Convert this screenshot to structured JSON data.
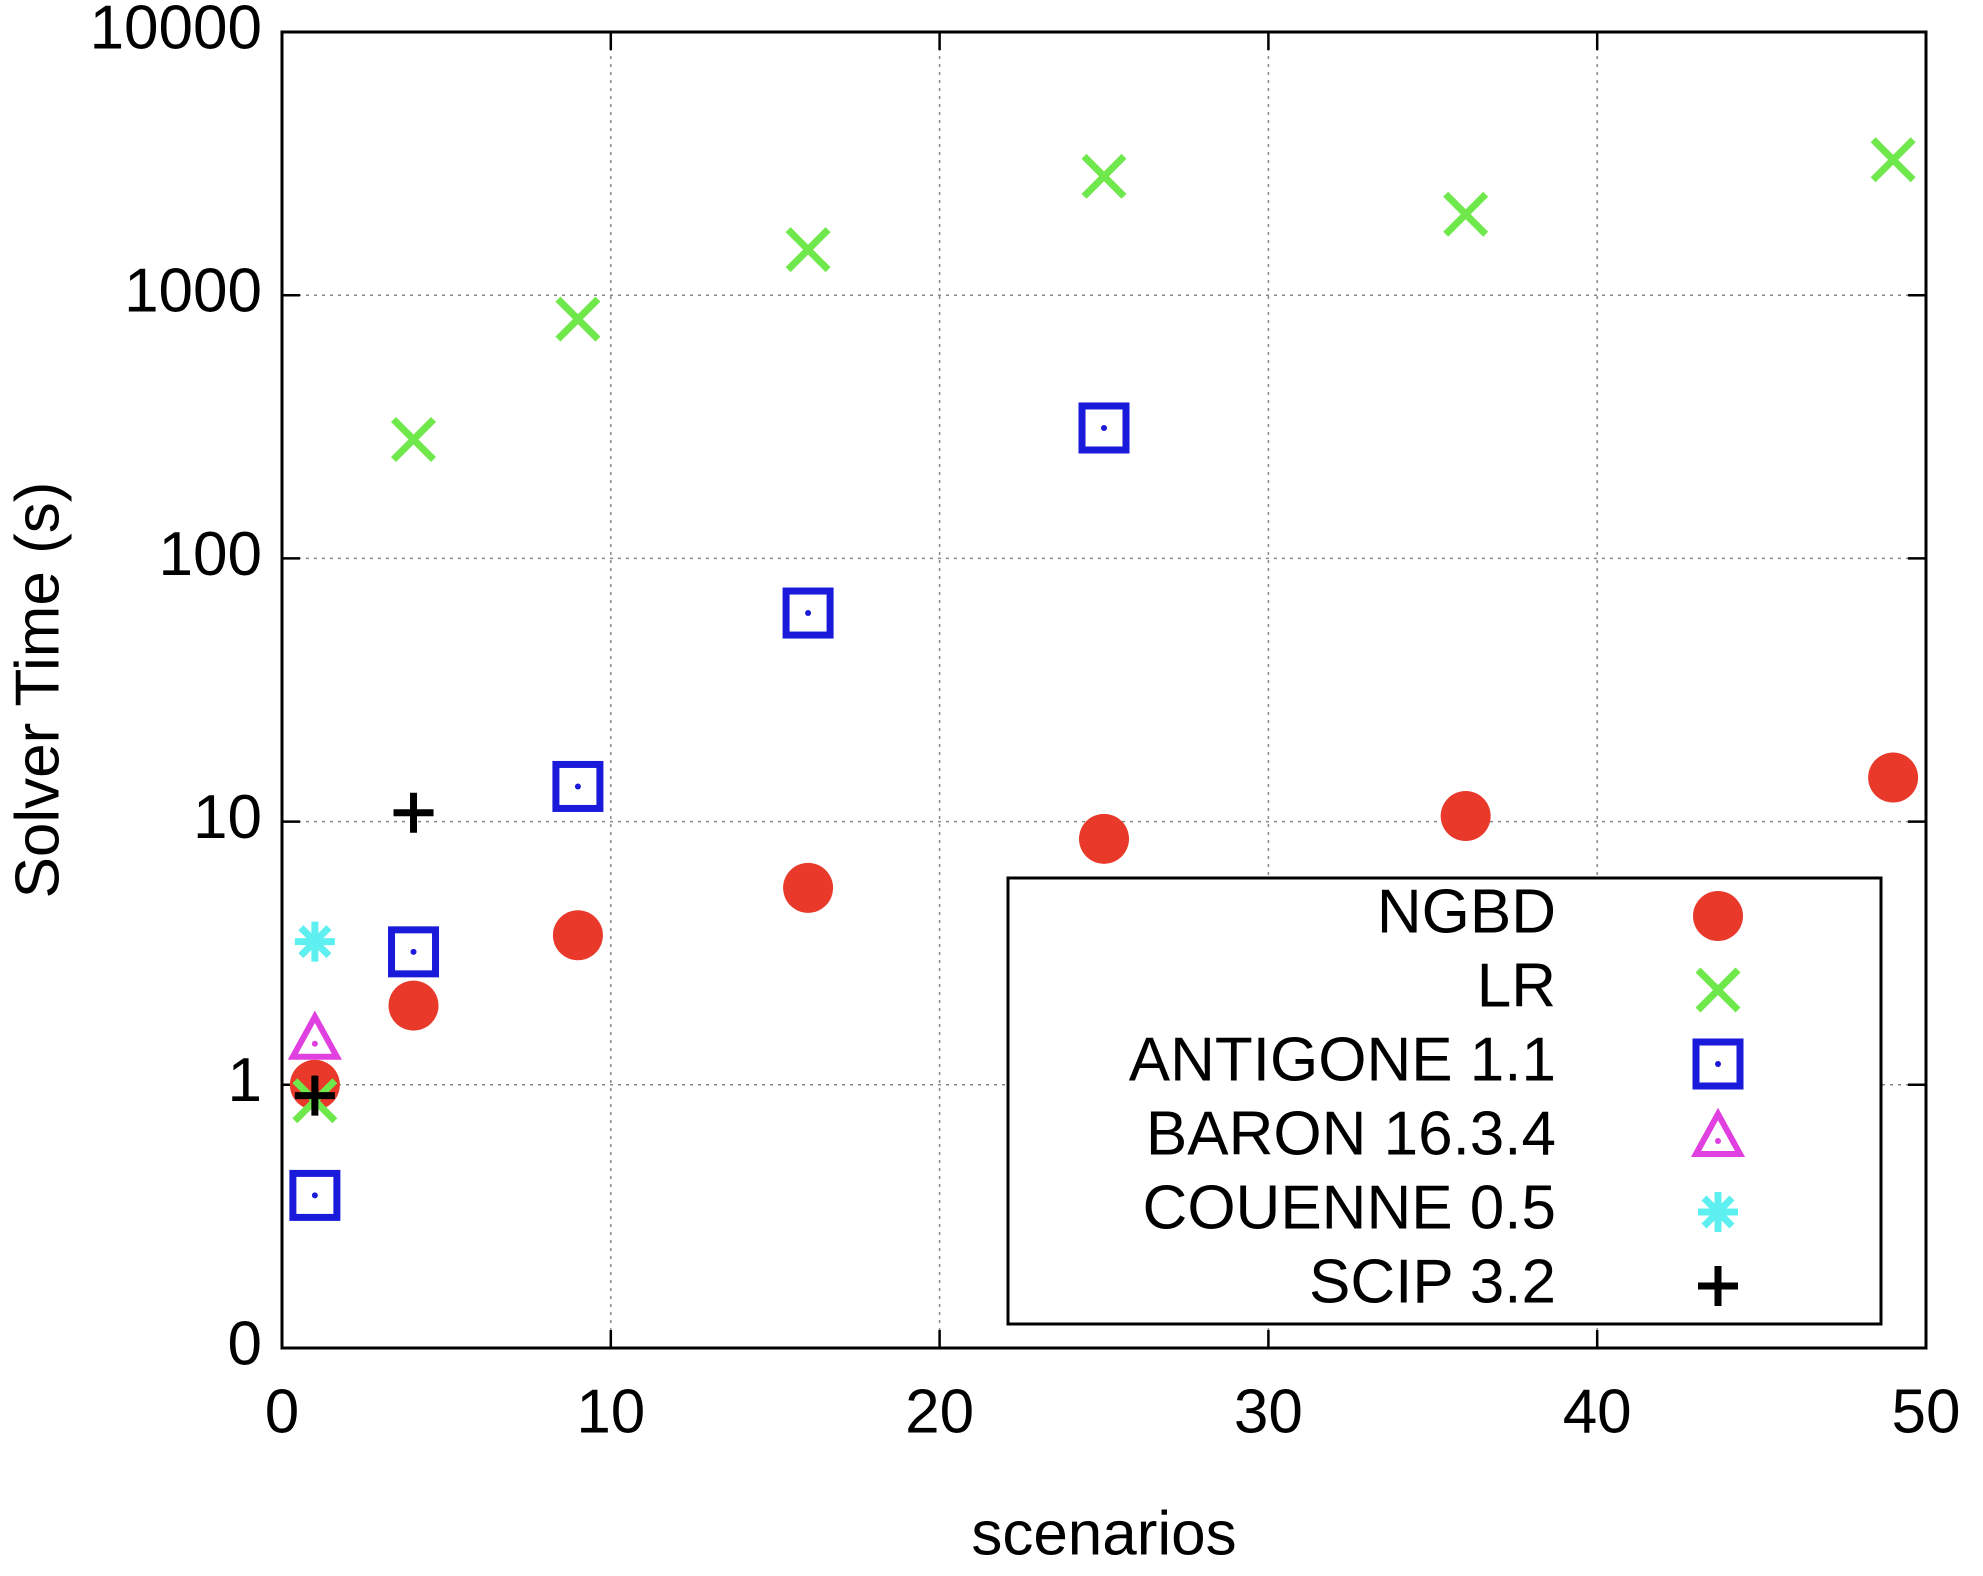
{
  "chart_data": {
    "type": "scatter",
    "x_label": "scenarios",
    "y_label": "Solver Time (s)",
    "xlim": [
      0,
      50
    ],
    "xticks": [
      0,
      10,
      20,
      30,
      40,
      50
    ],
    "ylim": [
      0.1,
      10000
    ],
    "yticks": [
      {
        "value": 0.1,
        "label": "0"
      },
      1,
      10,
      100,
      1000,
      10000
    ],
    "log_y": true,
    "grid": true,
    "legend_position": "lower right",
    "series": [
      {
        "name": "NGBD",
        "color": "#e8392a",
        "marker": "circle",
        "x": [
          1,
          4,
          9,
          16,
          25,
          36,
          49
        ],
        "values": [
          1.0,
          2.0,
          3.7,
          5.6,
          8.6,
          10.5,
          14.7
        ]
      },
      {
        "name": "LR",
        "color": "#6ee84a",
        "marker": "cross",
        "x": [
          1,
          4,
          9,
          16,
          25,
          36,
          49
        ],
        "values": [
          0.87,
          283,
          811,
          1490,
          2830,
          2030,
          3270
        ]
      },
      {
        "name": "ANTIGONE 1.1",
        "color": "#1a1adb",
        "marker": "dotted-square",
        "x": [
          1,
          4,
          9,
          16,
          25
        ],
        "values": [
          0.38,
          3.2,
          13.6,
          62,
          313
        ]
      },
      {
        "name": "BARON 16.3.4",
        "color": "#e040e0",
        "marker": "dotted-triangle",
        "x": [
          1
        ],
        "values": [
          1.47
        ]
      },
      {
        "name": "COUENNE 0.5",
        "color": "#5ef0f0",
        "marker": "asterisk",
        "x": [
          1
        ],
        "values": [
          3.5
        ]
      },
      {
        "name": "SCIP 3.2",
        "color": "#000000",
        "marker": "plus",
        "x": [
          1,
          4
        ],
        "values": [
          0.91,
          10.8
        ]
      }
    ]
  }
}
